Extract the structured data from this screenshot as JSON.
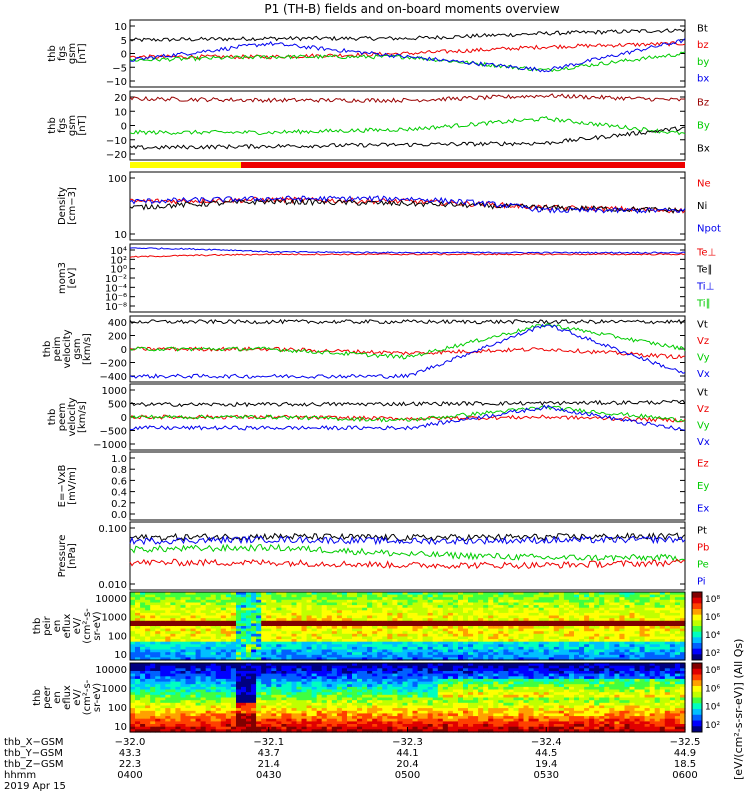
{
  "title": "P1 (TH-B) fields and on-board moments overview",
  "colors": {
    "black": "#000000",
    "red": "#ee0000",
    "green": "#00cc00",
    "blue": "#0000ee",
    "darkred": "#990000",
    "yellow": "#ffff00",
    "barred": "#ee0000"
  },
  "chart_data": [
    {
      "type": "line",
      "name": "fgs_gsm",
      "ylabel": [
        "thb",
        "fgs",
        "gsm",
        "[nT]"
      ],
      "ylim": [
        -10,
        10
      ],
      "yticks": [
        "10",
        "5",
        "0",
        "−5",
        "−10"
      ],
      "legend": [
        {
          "text": "Bt",
          "color": "black"
        },
        {
          "text": "bz",
          "color": "red"
        },
        {
          "text": "by",
          "color": "green"
        },
        {
          "text": "bx",
          "color": "blue"
        }
      ],
      "x": [
        "0400",
        "0430",
        "0500",
        "0530",
        "0600"
      ],
      "series": [
        {
          "name": "Bt",
          "values": [
            4,
            4.5,
            4.5,
            6,
            7
          ]
        },
        {
          "name": "bz",
          "values": [
            -1,
            -1,
            0,
            2,
            3
          ]
        },
        {
          "name": "by",
          "values": [
            -2,
            -1,
            -1,
            -5,
            0
          ]
        },
        {
          "name": "bx",
          "values": [
            -2,
            3,
            -1,
            -5,
            4
          ]
        }
      ]
    },
    {
      "type": "line",
      "name": "fgs_gse",
      "ylabel": [
        "thb",
        "fgs",
        "gsm",
        "[nT]"
      ],
      "ylim": [
        -25,
        20
      ],
      "yticks": [
        "20",
        "10",
        "0",
        "−10",
        "−20"
      ],
      "legend": [
        {
          "text": "Bz",
          "color": "darkred"
        },
        {
          "text": "By",
          "color": "green"
        },
        {
          "text": "Bx",
          "color": "black"
        }
      ],
      "x": [
        "0400",
        "0430",
        "0500",
        "0530",
        "0600"
      ],
      "series": [
        {
          "name": "Bz",
          "values": [
            15,
            14,
            14,
            17,
            14
          ]
        },
        {
          "name": "By",
          "values": [
            -7,
            -7,
            -5,
            2,
            -8
          ]
        },
        {
          "name": "Bx",
          "values": [
            -17,
            -16,
            -15,
            -14,
            -4
          ]
        }
      ]
    },
    {
      "type": "line",
      "name": "density",
      "ylabel": [
        "Density",
        "[cm−3]"
      ],
      "ylim": [
        0.3,
        300
      ],
      "log": true,
      "yticks": [
        "100",
        "10"
      ],
      "legend": [
        {
          "text": "Ne",
          "color": "red"
        },
        {
          "text": "Ni",
          "color": "black"
        },
        {
          "text": "Npot",
          "color": "blue"
        }
      ],
      "x": [
        "0400",
        "0430",
        "0500",
        "0530",
        "0600"
      ],
      "series": [
        {
          "name": "Ne",
          "values": [
            15,
            18,
            15,
            8,
            6
          ]
        },
        {
          "name": "Ni",
          "values": [
            8,
            15,
            12,
            8,
            6
          ]
        },
        {
          "name": "Npot",
          "values": [
            15,
            20,
            20,
            6,
            6
          ]
        }
      ]
    },
    {
      "type": "line",
      "name": "moments_T",
      "ylabel": [
        "mom3",
        "[eV]"
      ],
      "ylim": [
        1e-08,
        10000.0
      ],
      "log": true,
      "yticks": [
        "10⁴",
        "10²",
        "10⁰",
        "10⁻²",
        "10⁻⁴",
        "10⁻⁶",
        "10⁻⁸"
      ],
      "legend": [
        {
          "text": "Te⊥",
          "color": "red"
        },
        {
          "text": "Te∥",
          "color": "black"
        },
        {
          "text": "Ti⊥",
          "color": "blue"
        },
        {
          "text": "Ti∥",
          "color": "green"
        }
      ],
      "x": [
        "0400",
        "0430",
        "0500",
        "0530",
        "0600"
      ],
      "series": [
        {
          "name": "Ti⊥",
          "values": [
            2000,
            400,
            300,
            300,
            300
          ]
        },
        {
          "name": "Te⊥",
          "values": [
            50,
            150,
            150,
            150,
            150
          ]
        }
      ]
    },
    {
      "type": "line",
      "name": "peim_velocity",
      "ylabel": [
        "thb",
        "peim",
        "velocity",
        "gsm",
        "[km/s]"
      ],
      "ylim": [
        -400,
        400
      ],
      "yticks": [
        "400",
        "200",
        "0",
        "−200",
        "−400"
      ],
      "legend": [
        {
          "text": "Vt",
          "color": "black"
        },
        {
          "text": "Vz",
          "color": "red"
        },
        {
          "text": "Vy",
          "color": "green"
        },
        {
          "text": "Vx",
          "color": "blue"
        }
      ],
      "x": [
        "0400",
        "0430",
        "0500",
        "0530",
        "0600"
      ],
      "series": [
        {
          "name": "Vt",
          "values": [
            330,
            330,
            330,
            330,
            330
          ]
        },
        {
          "name": "Vz",
          "values": [
            0,
            0,
            -50,
            0,
            -100
          ]
        },
        {
          "name": "Vy",
          "values": [
            0,
            0,
            -100,
            300,
            0
          ]
        },
        {
          "name": "Vx",
          "values": [
            -330,
            -330,
            -330,
            300,
            -300
          ]
        }
      ]
    },
    {
      "type": "line",
      "name": "peem_velocity",
      "ylabel": [
        "thb",
        "peem",
        "velocity",
        "[km/s]"
      ],
      "ylim": [
        -1000,
        1000
      ],
      "yticks": [
        "1000",
        "500",
        "0",
        "−500",
        "−1000"
      ],
      "legend": [
        {
          "text": "Vt",
          "color": "black"
        },
        {
          "text": "Vz",
          "color": "red"
        },
        {
          "text": "Vy",
          "color": "green"
        },
        {
          "text": "Vx",
          "color": "blue"
        }
      ],
      "x": [
        "0400",
        "0430",
        "0500",
        "0530",
        "0600"
      ],
      "series": [
        {
          "name": "Vt",
          "values": [
            380,
            380,
            400,
            420,
            450
          ]
        },
        {
          "name": "Vz",
          "values": [
            0,
            0,
            -50,
            0,
            -100
          ]
        },
        {
          "name": "Vy",
          "values": [
            0,
            0,
            -100,
            300,
            -100
          ]
        },
        {
          "name": "Vx",
          "values": [
            -330,
            -330,
            -330,
            300,
            -400
          ]
        }
      ]
    },
    {
      "type": "line",
      "name": "efield",
      "ylabel": [
        "E=−VxB",
        "[mV/m]"
      ],
      "ylim": [
        0,
        1
      ],
      "yticks": [
        "1.0",
        "0.8",
        "0.6",
        "0.4",
        "0.2",
        "0.0"
      ],
      "legend": [
        {
          "text": "Ez",
          "color": "red"
        },
        {
          "text": "Ey",
          "color": "green"
        },
        {
          "text": "Ex",
          "color": "blue"
        }
      ],
      "series": []
    },
    {
      "type": "line",
      "name": "pressure",
      "ylabel": [
        "Pressure",
        "[nPa]"
      ],
      "ylim": [
        0.001,
        0.3
      ],
      "log": true,
      "yticks": [
        "0.100",
        "0.010"
      ],
      "legend": [
        {
          "text": "Pt",
          "color": "black"
        },
        {
          "text": "Pb",
          "color": "red"
        },
        {
          "text": "Pe",
          "color": "green"
        },
        {
          "text": "Pi",
          "color": "blue"
        }
      ],
      "x": [
        "0400",
        "0430",
        "0500",
        "0530",
        "0600"
      ],
      "series": [
        {
          "name": "Pt",
          "values": [
            0.08,
            0.09,
            0.08,
            0.085,
            0.09
          ]
        },
        {
          "name": "Pi",
          "values": [
            0.06,
            0.07,
            0.06,
            0.065,
            0.07
          ]
        },
        {
          "name": "Pe",
          "values": [
            0.03,
            0.035,
            0.02,
            0.015,
            0.015
          ]
        },
        {
          "name": "Pb",
          "values": [
            0.01,
            0.01,
            0.008,
            0.008,
            0.01
          ]
        }
      ]
    },
    {
      "type": "heatmap",
      "name": "peir_spectrogram",
      "ylabel": [
        "thb",
        "peir",
        "en",
        "eflux",
        "eV/",
        "(cm²-s-",
        "sr-eV)"
      ],
      "ylim": [
        5,
        30000
      ],
      "log": true,
      "yticks": [
        "10000",
        "1000",
        "100",
        "10"
      ],
      "colorbar": {
        "ticks": [
          "10⁸",
          "10⁶",
          "10⁴",
          "10²"
        ]
      }
    },
    {
      "type": "heatmap",
      "name": "peer_spectrogram",
      "ylabel": [
        "thb",
        "peer",
        "en",
        "eflux",
        "eV/",
        "(cm²-s-",
        "sr-eV)"
      ],
      "ylim": [
        5,
        30000
      ],
      "log": true,
      "yticks": [
        "10000",
        "1000",
        "100",
        "10"
      ],
      "colorbar": {
        "ticks": [
          "10⁸",
          "10⁶",
          "10⁴",
          "10²"
        ]
      }
    }
  ],
  "colorbar_label": "[eV/(cm²-s-sr-eV)] (All Qs)",
  "xaxis": {
    "row_labels": [
      "thb_X−GSM",
      "thb_Y−GSM",
      "thb_Z−GSM",
      "hhmm",
      "2019 Apr 15"
    ],
    "top_ticks": [
      "−32.0",
      "−32.1",
      "−32.3",
      "−32.4",
      "−32.5"
    ],
    "columns": [
      [
        "43.3",
        "22.3",
        "0400"
      ],
      [
        "43.7",
        "21.4",
        "0430"
      ],
      [
        "44.1",
        "20.4",
        "0500"
      ],
      [
        "44.5",
        "19.4",
        "0530"
      ],
      [
        "44.9",
        "18.5",
        "0600"
      ]
    ]
  }
}
